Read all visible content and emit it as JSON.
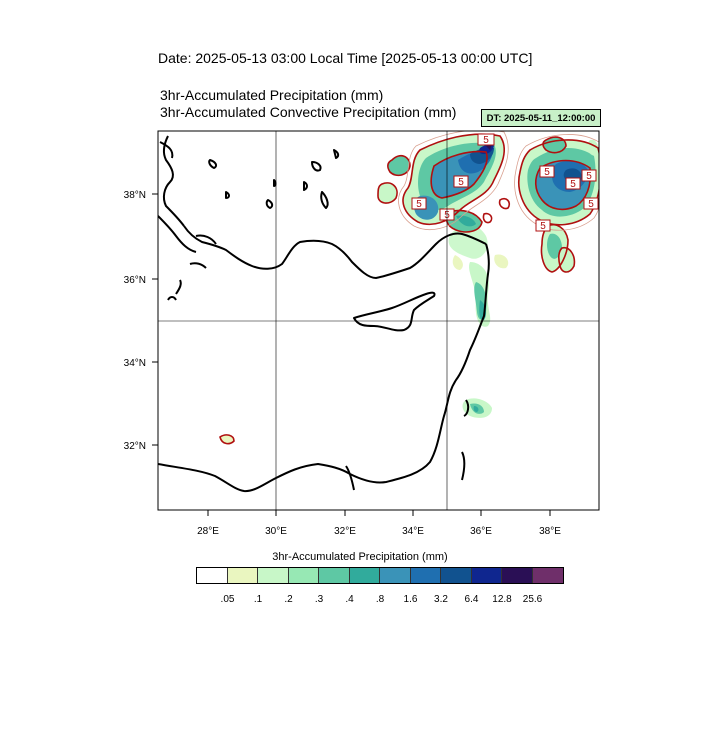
{
  "header": {
    "date_line": "Date: 2025-05-13  03:00 Local Time [2025-05-13  00:00 UTC]",
    "line1": "3hr-Accumulated Precipitation   (mm)",
    "line2": "3hr-Accumulated Convective Precipitation   (mm)",
    "dt_badge": "DT: 2025-05-11_12:00:00"
  },
  "map": {
    "lon_range": [
      26.6,
      39.4
    ],
    "lat_range": [
      30.4,
      39.3
    ],
    "lon_ticks": [
      "28°E",
      "30°E",
      "32°E",
      "34°E",
      "36°E",
      "38°E"
    ],
    "lat_ticks": [
      "32°N",
      "34°N",
      "36°N",
      "38°N"
    ],
    "grid": {
      "lons": [
        30,
        35
      ],
      "lats": [
        35
      ]
    },
    "contour_labels": [
      "5",
      "5",
      "5",
      "5",
      "5",
      "5",
      "5",
      "5",
      "5"
    ]
  },
  "colorbar": {
    "title": "3hr-Accumulated Precipitation   (mm)",
    "colors": [
      "#ffffff",
      "#eaf6c0",
      "#c8f7c8",
      "#97e8b4",
      "#5ec8a4",
      "#31ab9c",
      "#3a93b8",
      "#1f6fb0",
      "#11528f",
      "#0f268f",
      "#2a0f55",
      "#6f2f6a"
    ],
    "labels": [
      ".05",
      ".1",
      ".2",
      ".3",
      ".4",
      ".8",
      "1.6",
      "3.2",
      "6.4",
      "12.8",
      "25.6"
    ]
  }
}
